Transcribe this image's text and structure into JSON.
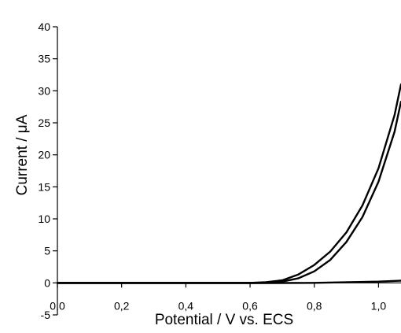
{
  "chart_data": {
    "type": "line",
    "title": "",
    "xlabel": "Potential / V vs. ECS",
    "ylabel": "Current / μA",
    "xlim": [
      0.0,
      1.07
    ],
    "ylim": [
      -5,
      40
    ],
    "x_ticks": [
      "0,0",
      "0,2",
      "0,4",
      "0,6",
      "0,8",
      "1,0"
    ],
    "y_ticks": [
      "-5",
      "0",
      "5",
      "10",
      "15",
      "20",
      "25",
      "30",
      "35",
      "40"
    ],
    "grid": false,
    "legend": "none",
    "line_color": "#000000",
    "series": [
      {
        "x": [
          0.0,
          0.2,
          0.4,
          0.6,
          0.65,
          0.7,
          0.75,
          0.8,
          0.85,
          0.9,
          0.95,
          1.0,
          1.05,
          1.07
        ],
        "values": [
          0.0,
          0.0,
          0.0,
          0.0,
          0.1,
          0.4,
          1.3,
          2.8,
          4.9,
          7.9,
          12.1,
          17.9,
          26.2,
          31.0
        ]
      },
      {
        "x": [
          0.0,
          0.2,
          0.4,
          0.6,
          0.65,
          0.7,
          0.75,
          0.8,
          0.85,
          0.9,
          0.95,
          1.0,
          1.05,
          1.07
        ],
        "values": [
          0.0,
          0.0,
          0.0,
          0.0,
          0.05,
          0.2,
          0.7,
          1.8,
          3.6,
          6.4,
          10.3,
          15.8,
          23.6,
          28.3
        ]
      },
      {
        "x": [
          0.0,
          0.2,
          0.4,
          0.6,
          0.8,
          1.0,
          1.07
        ],
        "values": [
          -0.05,
          -0.05,
          -0.05,
          -0.05,
          0.0,
          0.2,
          0.35
        ]
      }
    ]
  }
}
